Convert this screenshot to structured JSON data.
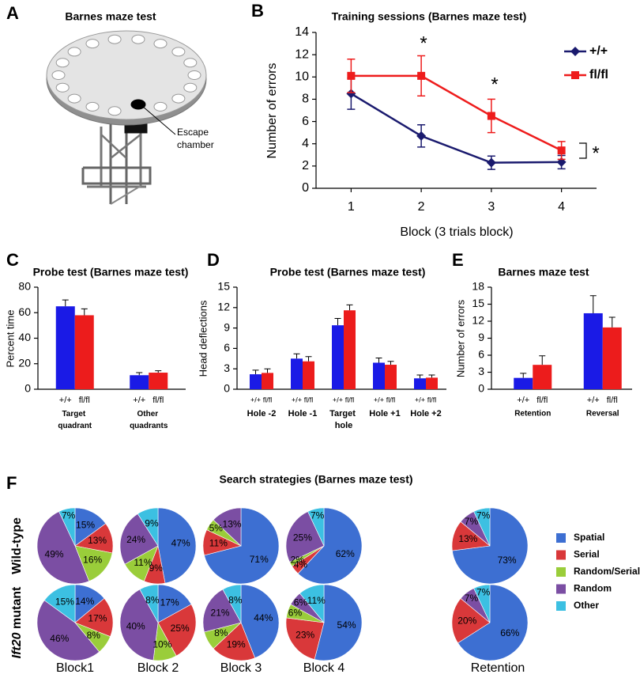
{
  "figure": {
    "panel_labels": [
      "A",
      "B",
      "C",
      "D",
      "E",
      "F"
    ],
    "maze_title": "Barnes maze test",
    "maze_label": [
      "Escape",
      "chamber"
    ]
  },
  "chart_data": [
    {
      "type": "line",
      "title": "Training sessions (Barnes maze test)",
      "xlabel": "Block (3 trials block)",
      "ylabel": "Number of errors",
      "x": [
        1,
        2,
        3,
        4
      ],
      "xlim": [
        0.5,
        4.5
      ],
      "xticks": [
        1,
        2,
        3,
        4
      ],
      "ylim": [
        0,
        14
      ],
      "yticks": [
        0,
        2,
        4,
        6,
        8,
        10,
        12,
        14
      ],
      "series": [
        {
          "name": "+/+",
          "color": "#1a1a6e",
          "marker": "diamond",
          "values": [
            8.5,
            4.7,
            2.3,
            2.35
          ],
          "errors": [
            1.4,
            1.0,
            0.6,
            0.6
          ]
        },
        {
          "name": "fl/fl",
          "color": "#ee1c1c",
          "marker": "square",
          "values": [
            10.1,
            10.1,
            6.5,
            3.4
          ],
          "errors": [
            1.5,
            1.8,
            1.5,
            0.8
          ]
        }
      ],
      "legend": "upper right",
      "annotations": [
        "*",
        "*",
        "*"
      ]
    },
    {
      "type": "bar",
      "title": "Probe test (Barnes maze test)",
      "ylabel": "Percent time",
      "categories": [
        "Target quadrant",
        "Other quadrants"
      ],
      "ylim": [
        0,
        80
      ],
      "yticks": [
        0,
        20,
        40,
        60,
        80
      ],
      "series": [
        {
          "name": "+/+",
          "color": "#1a1ae6",
          "values": [
            65,
            11
          ],
          "errors": [
            5,
            2
          ]
        },
        {
          "name": "fl/fl",
          "color": "#ec1c1c",
          "values": [
            58,
            13
          ],
          "errors": [
            5,
            1.5
          ]
        }
      ]
    },
    {
      "type": "bar",
      "title": "Probe test (Barnes maze test)",
      "ylabel": "Head deflections",
      "categories": [
        "Hole -2",
        "Hole -1",
        "Target hole",
        "Hole +1",
        "Hole +2"
      ],
      "ylim": [
        0,
        15
      ],
      "yticks": [
        0,
        3,
        6,
        9,
        12,
        15
      ],
      "series": [
        {
          "name": "+/+",
          "color": "#1a1ae6",
          "values": [
            2.2,
            4.5,
            9.4,
            3.9,
            1.6
          ],
          "errors": [
            0.6,
            0.7,
            1.0,
            0.7,
            0.5
          ]
        },
        {
          "name": "fl/fl",
          "color": "#ec1c1c",
          "values": [
            2.4,
            4.1,
            11.6,
            3.6,
            1.7
          ],
          "errors": [
            0.6,
            0.7,
            0.8,
            0.5,
            0.4
          ]
        }
      ]
    },
    {
      "type": "bar",
      "title": "Barnes maze test",
      "ylabel": "Number of errors",
      "categories": [
        "Retention",
        "Reversal"
      ],
      "ylim": [
        0,
        18
      ],
      "yticks": [
        0,
        3,
        6,
        9,
        12,
        15,
        18
      ],
      "series": [
        {
          "name": "+/+",
          "color": "#1a1ae6",
          "values": [
            2.0,
            13.4
          ],
          "errors": [
            0.8,
            3.1
          ]
        },
        {
          "name": "fl/fl",
          "color": "#ec1c1c",
          "values": [
            4.3,
            10.9
          ],
          "errors": [
            1.6,
            1.8
          ]
        }
      ]
    },
    {
      "type": "pie",
      "title": "Search strategies (Barnes maze test)",
      "categories": [
        "Spatial",
        "Serial",
        "Random/Serial",
        "Random",
        "Other"
      ],
      "colors": [
        "#3d6fd2",
        "#d9383a",
        "#9acd3a",
        "#7b4ea3",
        "#3cc0e2"
      ],
      "columns": [
        "Block1",
        "Block 2",
        "Block 3",
        "Block 4",
        "Retention"
      ],
      "rows": [
        {
          "label": "Wild-type",
          "values": [
            [
              15,
              13,
              16,
              49,
              7
            ],
            [
              47,
              9,
              11,
              24,
              9
            ],
            [
              71,
              11,
              5,
              13,
              null
            ],
            [
              62,
              4,
              2,
              25,
              7
            ],
            [
              73,
              13,
              null,
              7,
              7
            ]
          ],
          "value_labels": [
            [
              "15%",
              "13%",
              "16%",
              "49%",
              "7%"
            ],
            [
              "47%",
              "9%",
              "11%",
              "24%",
              "9%"
            ],
            [
              "71%",
              "11%",
              "5%",
              "13%",
              null
            ],
            [
              "62%",
              "4%",
              "2%",
              "25%",
              "7%"
            ],
            [
              "73%",
              "13%",
              null,
              "7%",
              "7%"
            ]
          ]
        },
        {
          "label": "Ift20 mutant",
          "values": [
            [
              14,
              17,
              8,
              46,
              15
            ],
            [
              17,
              25,
              10,
              40,
              8
            ],
            [
              44,
              19,
              8,
              21,
              8
            ],
            [
              54,
              23,
              6,
              6,
              11
            ],
            [
              66,
              20,
              null,
              7,
              7
            ]
          ],
          "value_labels": [
            [
              "14%",
              "17%",
              "8%",
              "46%",
              "15%"
            ],
            [
              "17%",
              "25%",
              "10%",
              "40%",
              "8%"
            ],
            [
              "44%",
              "19%",
              "8%",
              "21%",
              "8%"
            ],
            [
              "54%",
              "23%",
              "6%",
              "6%",
              "11%"
            ],
            [
              "66%",
              "20%",
              null,
              "7%",
              "7%"
            ]
          ]
        }
      ],
      "legend": "right"
    }
  ]
}
